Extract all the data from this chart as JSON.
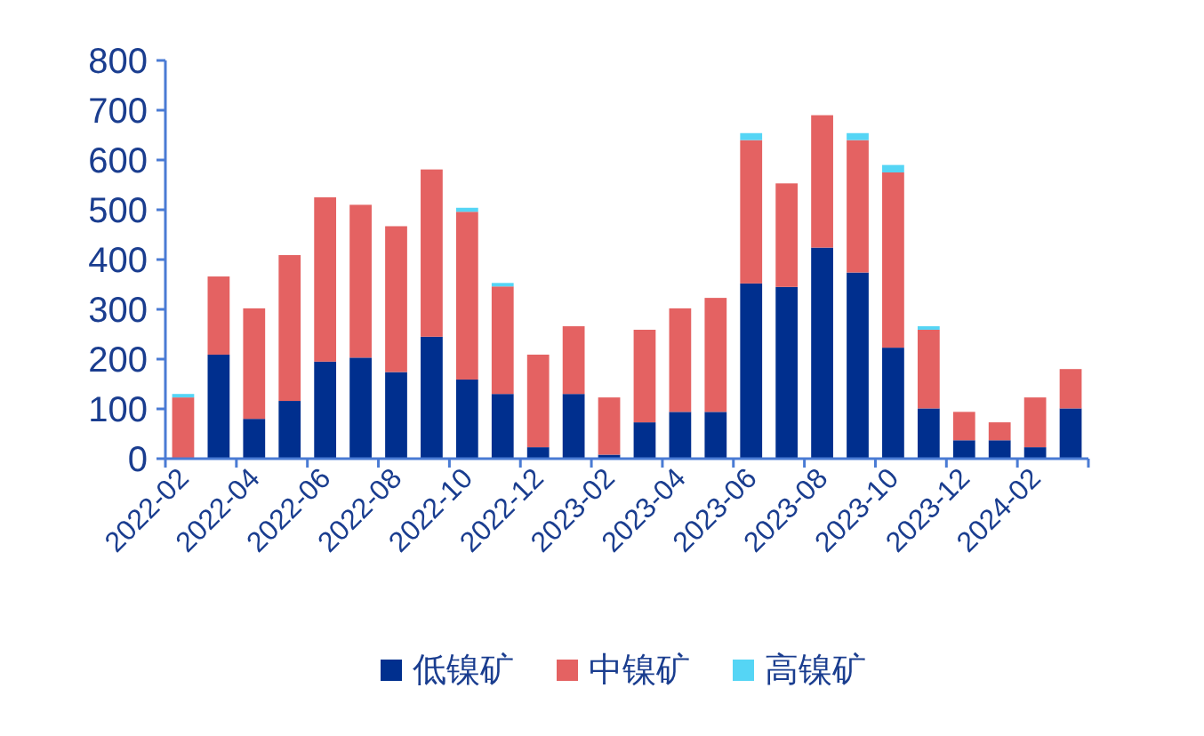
{
  "chart_data": {
    "type": "bar",
    "stacked": true,
    "legend": "bottom",
    "categories": [
      "2022-02",
      null,
      "2022-04",
      null,
      "2022-06",
      null,
      "2022-08",
      null,
      "2022-10",
      null,
      "2022-12",
      null,
      "2023-02",
      null,
      "2023-04",
      null,
      "2023-06",
      null,
      "2023-08",
      null,
      "2023-10",
      null,
      "2023-12",
      null,
      "2024-02",
      null
    ],
    "ylim": [
      0,
      800
    ],
    "yticks": [
      0,
      100,
      200,
      300,
      400,
      500,
      600,
      700,
      800
    ],
    "series": [
      {
        "name": "低镍矿",
        "color": "#002f8e",
        "values": [
          0,
          209,
          80,
          116,
          195,
          203,
          174,
          245,
          159,
          130,
          23,
          130,
          8,
          73,
          94,
          94,
          352,
          345,
          424,
          374,
          223,
          101,
          37,
          37,
          23,
          101
        ]
      },
      {
        "name": "中镍矿",
        "color": "#e46262",
        "values": [
          123,
          157,
          222,
          293,
          330,
          307,
          293,
          336,
          337,
          216,
          186,
          136,
          115,
          186,
          208,
          229,
          288,
          208,
          266,
          266,
          352,
          158,
          57,
          36,
          100,
          79
        ]
      },
      {
        "name": "高镍矿",
        "color": "#55d5f5",
        "values": [
          7,
          0,
          0,
          0,
          0,
          0,
          0,
          0,
          8,
          7,
          0,
          0,
          0,
          0,
          0,
          0,
          14,
          0,
          0,
          14,
          15,
          7,
          0,
          0,
          0,
          0
        ]
      }
    ]
  }
}
